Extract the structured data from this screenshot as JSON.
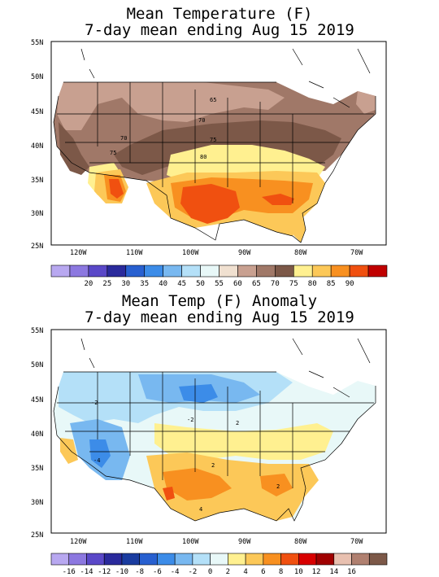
{
  "map1": {
    "title_line1": "Mean Temperature (F)",
    "title_line2": "7-day mean ending Aug 15 2019",
    "lat_labels": [
      "55N",
      "50N",
      "45N",
      "40N",
      "35N",
      "30N",
      "25N"
    ],
    "lon_labels": [
      "120W",
      "110W",
      "100W",
      "90W",
      "80W",
      "70W"
    ],
    "contour_labels": [
      "65",
      "70",
      "70",
      "75",
      "75",
      "80"
    ],
    "colorbar_labels": [
      "20",
      "25",
      "30",
      "35",
      "40",
      "45",
      "50",
      "55",
      "60",
      "65",
      "70",
      "75",
      "80",
      "85",
      "90"
    ],
    "colorbar_colors": [
      "#b8a8f0",
      "#8c78e0",
      "#5a48c8",
      "#2a2a9c",
      "#2860d0",
      "#3c8ce8",
      "#78b8f0",
      "#b4e0f8",
      "#e8f8f8",
      "#f0e0d0",
      "#c8a090",
      "#a07868",
      "#7c5848",
      "#fff090",
      "#fcc858",
      "#f89020",
      "#f05010",
      "#c00000"
    ]
  },
  "map2": {
    "title_line1": "Mean Temp (F) Anomaly",
    "title_line2": "7-day mean ending Aug 15 2019",
    "lat_labels": [
      "55N",
      "50N",
      "45N",
      "40N",
      "35N",
      "30N",
      "25N"
    ],
    "lon_labels": [
      "120W",
      "110W",
      "100W",
      "90W",
      "80W",
      "70W"
    ],
    "contour_labels": [
      "-2",
      "-2",
      "2",
      "2",
      "4",
      "-4",
      "2"
    ],
    "colorbar_labels": [
      "-16",
      "-14",
      "-12",
      "-10",
      "-8",
      "-6",
      "-4",
      "-2",
      "0",
      "2",
      "4",
      "6",
      "8",
      "10",
      "12",
      "14",
      "16"
    ],
    "colorbar_colors": [
      "#b8a8f0",
      "#8c78e0",
      "#5a48c8",
      "#2a2a9c",
      "#1a3ca0",
      "#2860d0",
      "#3c8ce8",
      "#78b8f0",
      "#b4e0f8",
      "#e8f8f8",
      "#fff090",
      "#fcc858",
      "#f89020",
      "#f05010",
      "#d80000",
      "#a00000",
      "#e8c0b0",
      "#b08070",
      "#7c5848"
    ]
  },
  "colors": {
    "map_bg": "#ffffff",
    "coast": "#000000"
  }
}
